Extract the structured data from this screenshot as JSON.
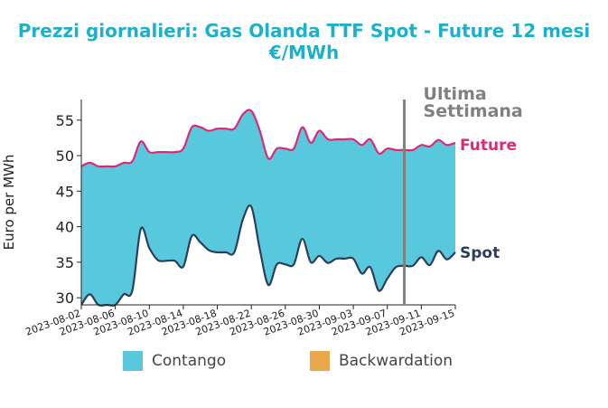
{
  "title_line1": "Prezzi giornalieri: Gas Olanda TTF Spot - Future 12 mesi",
  "title_line2": "€/MWh",
  "colors": {
    "fill": "#58c8dc",
    "future": "#d92a7a",
    "spot": "#2c3e5c",
    "marker": "#808080",
    "backwardation": "#e9a84a"
  },
  "chart_data": {
    "type": "area",
    "title": "Prezzi giornalieri: Gas Olanda TTF Spot - Future 12 mesi €/MWh",
    "ylabel": "Euro per MWh",
    "xlabel": "",
    "ylim": [
      29,
      57.9
    ],
    "yticks": [
      30,
      35,
      40,
      45,
      50,
      55
    ],
    "xticks": [
      "2023-08-02",
      "2023-08-06",
      "2023-08-10",
      "2023-08-14",
      "2023-08-18",
      "2023-08-22",
      "2023-08-26",
      "2023-08-30",
      "2023-09-03",
      "2023-09-07",
      "2023-09-11",
      "2023-09-15"
    ],
    "x": [
      "2023-08-02",
      "2023-08-03",
      "2023-08-04",
      "2023-08-05",
      "2023-08-06",
      "2023-08-07",
      "2023-08-08",
      "2023-08-09",
      "2023-08-10",
      "2023-08-11",
      "2023-08-12",
      "2023-08-13",
      "2023-08-14",
      "2023-08-15",
      "2023-08-16",
      "2023-08-17",
      "2023-08-18",
      "2023-08-19",
      "2023-08-20",
      "2023-08-21",
      "2023-08-22",
      "2023-08-23",
      "2023-08-24",
      "2023-08-25",
      "2023-08-26",
      "2023-08-27",
      "2023-08-28",
      "2023-08-29",
      "2023-08-30",
      "2023-08-31",
      "2023-09-01",
      "2023-09-02",
      "2023-09-03",
      "2023-09-04",
      "2023-09-05",
      "2023-09-06",
      "2023-09-07",
      "2023-09-08",
      "2023-09-09",
      "2023-09-10",
      "2023-09-11",
      "2023-09-12",
      "2023-09-13",
      "2023-09-14",
      "2023-09-15"
    ],
    "series": [
      {
        "name": "Future",
        "values": [
          48.5,
          49.0,
          48.5,
          48.5,
          48.5,
          49.0,
          49.2,
          52.0,
          50.5,
          50.5,
          50.5,
          50.5,
          51.0,
          54.0,
          54.0,
          53.5,
          53.8,
          53.8,
          53.8,
          55.8,
          56.3,
          53.5,
          49.6,
          51.0,
          51.0,
          51.0,
          54.0,
          51.8,
          53.5,
          52.3,
          52.3,
          52.3,
          52.3,
          51.5,
          52.3,
          50.3,
          51.0,
          50.8,
          50.8,
          50.8,
          51.5,
          51.3,
          52.2,
          51.5,
          51.8
        ]
      },
      {
        "name": "Spot",
        "values": [
          29.0,
          30.5,
          29.0,
          29.0,
          29.0,
          30.5,
          31.0,
          39.7,
          37.0,
          35.3,
          35.2,
          35.2,
          34.4,
          38.7,
          37.8,
          36.7,
          36.4,
          36.4,
          36.4,
          41.0,
          42.8,
          36.8,
          31.8,
          34.7,
          34.7,
          34.7,
          38.3,
          35.0,
          35.9,
          34.9,
          35.5,
          35.5,
          35.5,
          33.4,
          34.3,
          31.0,
          32.7,
          34.3,
          34.5,
          34.5,
          35.7,
          34.6,
          36.6,
          35.4,
          36.4
        ]
      }
    ],
    "vline": {
      "x": "2023-09-09",
      "label_line1": "Ultima",
      "label_line2": "Settimana"
    },
    "legend": {
      "position": "bottom",
      "items": [
        {
          "label": "Contango",
          "color": "#58c8dc"
        },
        {
          "label": "Backwardation",
          "color": "#e9a84a"
        }
      ]
    }
  }
}
